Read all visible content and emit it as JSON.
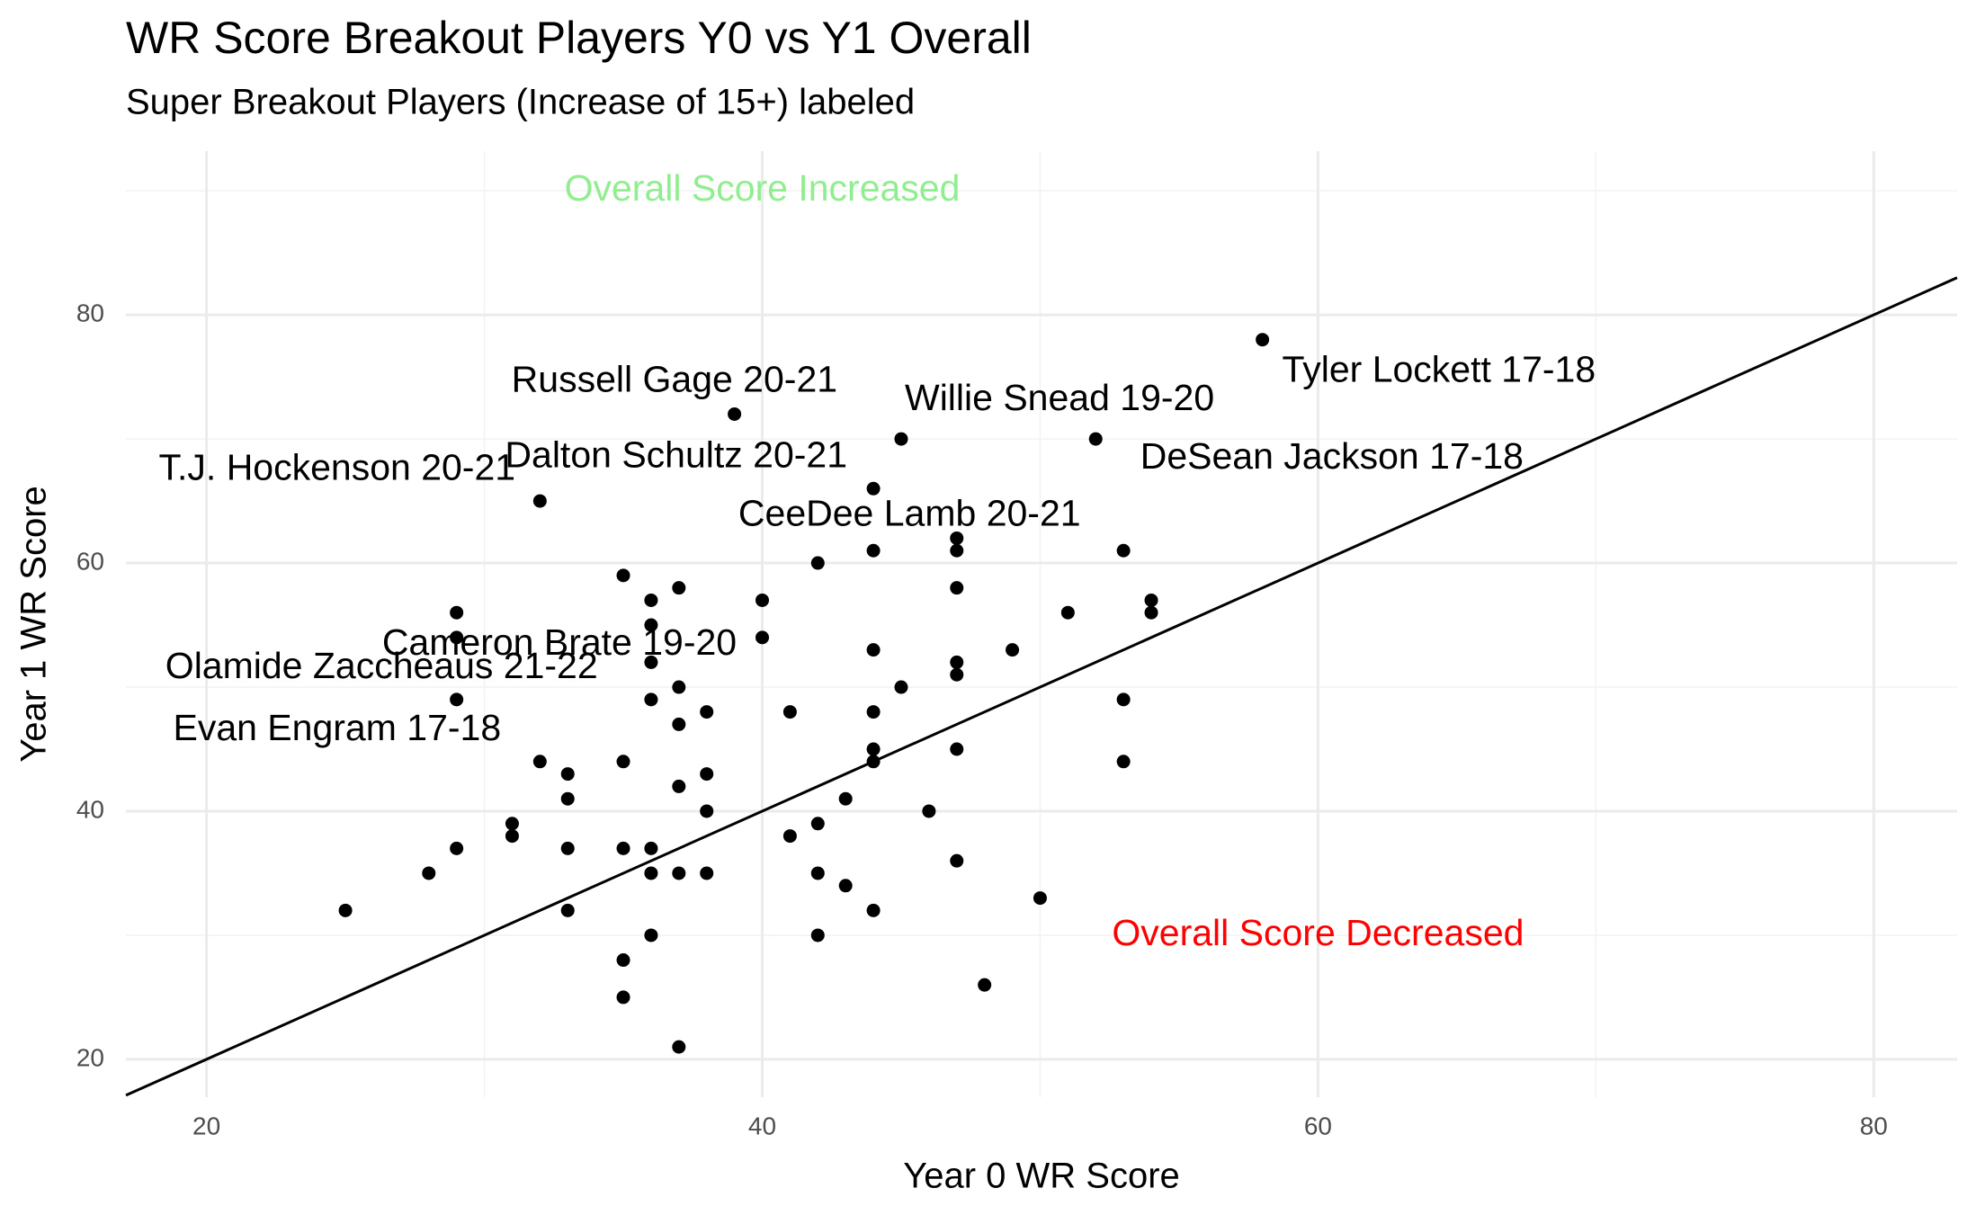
{
  "chart_data": {
    "type": "scatter",
    "title": "WR Score Breakout Players Y0 vs Y1 Overall",
    "subtitle": "Super Breakout Players (Increase of 15+) labeled",
    "x_label": "Year 0 WR Score",
    "y_label": "Year 1 WR Score",
    "xlim": [
      17.1,
      83.0
    ],
    "ylim": [
      16.95,
      93.2
    ],
    "xticks": [
      20,
      40,
      60,
      80
    ],
    "yticks": [
      20,
      40,
      60,
      80
    ],
    "x_minor_ticks": [
      30,
      50,
      70
    ],
    "y_minor_ticks": [
      30,
      50,
      70,
      90
    ],
    "grid": true,
    "color": "#000000",
    "reference_line": {
      "slope": 1,
      "intercept": 0
    },
    "x": [
      25,
      28,
      29,
      29,
      29,
      29,
      31,
      31,
      32,
      32,
      33,
      33,
      33,
      33,
      35,
      35,
      35,
      35,
      35,
      36,
      36,
      36,
      36,
      36,
      36,
      36,
      37,
      37,
      37,
      37,
      37,
      37,
      38,
      38,
      38,
      38,
      39,
      40,
      40,
      41,
      41,
      42,
      42,
      42,
      42,
      43,
      43,
      44,
      44,
      44,
      44,
      44,
      44,
      44,
      45,
      45,
      46,
      47,
      47,
      47,
      47,
      47,
      47,
      47,
      48,
      49,
      50,
      51,
      52,
      53,
      53,
      53,
      54,
      54,
      58
    ],
    "values": [
      32,
      35,
      56,
      54,
      49,
      37,
      39,
      38,
      65,
      44,
      43,
      41,
      37,
      32,
      59,
      44,
      37,
      28,
      25,
      57,
      55,
      52,
      49,
      37,
      35,
      30,
      58,
      50,
      47,
      42,
      35,
      21,
      48,
      43,
      40,
      35,
      72,
      57,
      54,
      48,
      38,
      60,
      39,
      35,
      30,
      41,
      34,
      66,
      61,
      53,
      48,
      45,
      44,
      32,
      70,
      50,
      40,
      62,
      61,
      58,
      52,
      51,
      45,
      36,
      26,
      53,
      33,
      56,
      70,
      61,
      49,
      44,
      57,
      56,
      78
    ],
    "annotations": [
      {
        "text": "Russell Gage 20-21",
        "x": 36.84,
        "y": 74.6,
        "color": "#000000"
      },
      {
        "text": "Willie Snead 19-20",
        "x": 50.7,
        "y": 73.1,
        "color": "#000000"
      },
      {
        "text": "Tyler Lockett 17-18",
        "x": 64.35,
        "y": 75.4,
        "color": "#000000"
      },
      {
        "text": "T.J. Hockenson 20-21",
        "x": 24.7,
        "y": 67.5,
        "color": "#000000"
      },
      {
        "text": "Dalton Schultz 20-21",
        "x": 36.9,
        "y": 68.5,
        "color": "#000000"
      },
      {
        "text": "DeSean Jackson 17-18",
        "x": 60.5,
        "y": 68.4,
        "color": "#000000"
      },
      {
        "text": "CeeDee Lamb 20-21",
        "x": 45.3,
        "y": 63.8,
        "color": "#000000"
      },
      {
        "text": "Cameron Brate 19-20",
        "x": 32.7,
        "y": 53.4,
        "color": "#000000"
      },
      {
        "text": "Olamide Zaccheaus 21-22",
        "x": 26.3,
        "y": 51.5,
        "color": "#000000"
      },
      {
        "text": "Evan Engram 17-18",
        "x": 24.7,
        "y": 46.5,
        "color": "#000000"
      },
      {
        "text": "Overall Score Increased",
        "x": 40.0,
        "y": 90.0,
        "color": "#90ee90"
      },
      {
        "text": "Overall Score Decreased",
        "x": 60.0,
        "y": 30.0,
        "color": "#ff0000"
      }
    ]
  }
}
